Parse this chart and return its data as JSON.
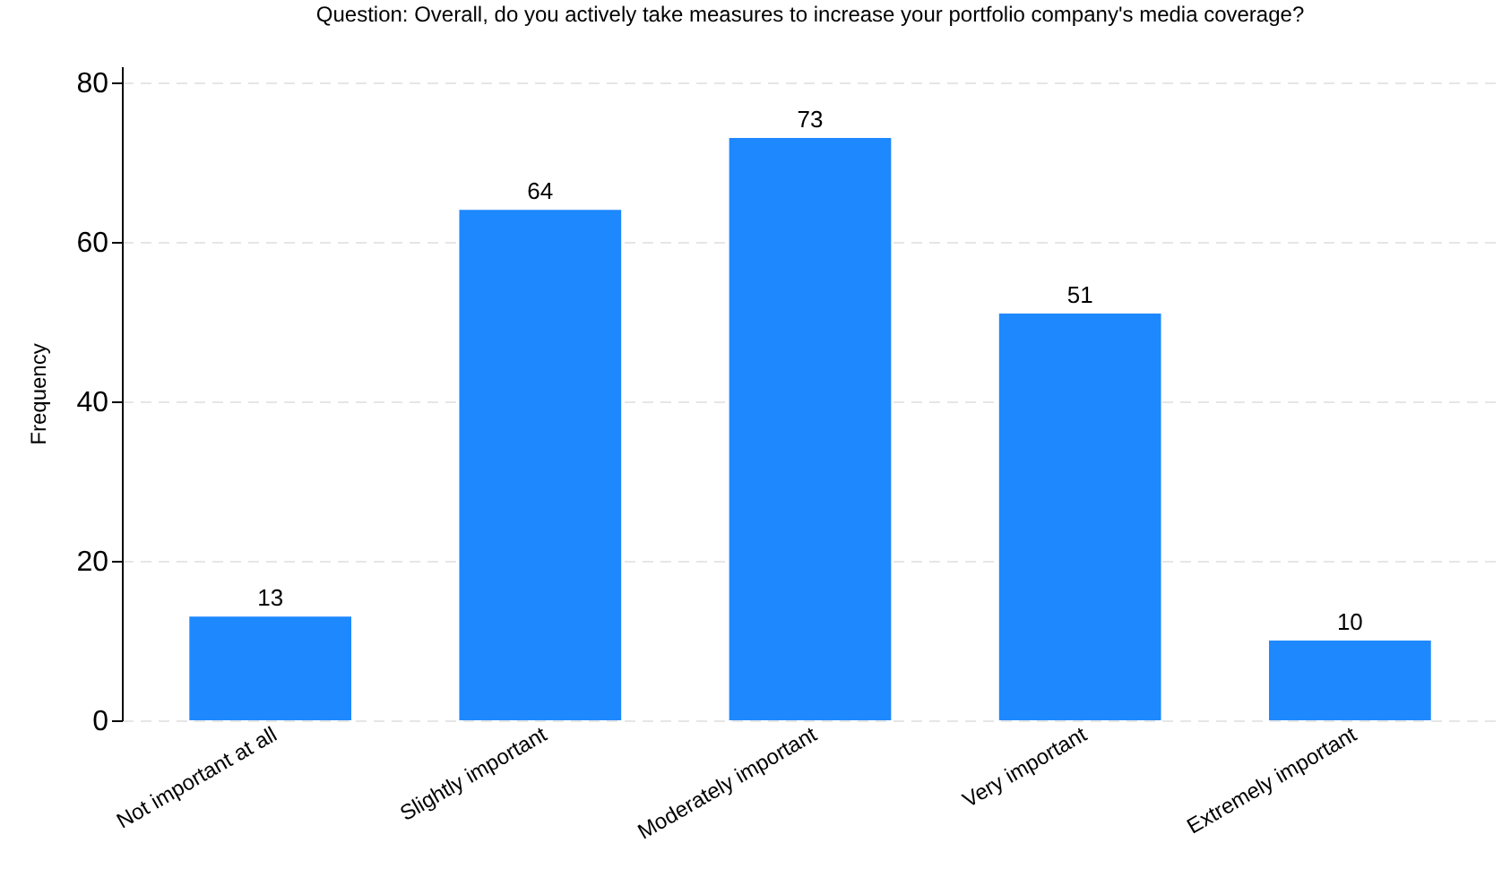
{
  "chart_data": {
    "type": "bar",
    "title": "Question: Overall, do you actively take measures to increase your portfolio company's media coverage?",
    "ylabel": "Frequency",
    "categories": [
      "Not important at all",
      "Slightly important",
      "Moderately important",
      "Very important",
      "Extremely important"
    ],
    "values": [
      13,
      64,
      73,
      51,
      10
    ],
    "color": "#1e88ff",
    "ylim": [
      0,
      82
    ],
    "yticks": [
      0,
      20,
      40,
      60,
      80
    ],
    "grid": "y",
    "data_labels": true
  }
}
